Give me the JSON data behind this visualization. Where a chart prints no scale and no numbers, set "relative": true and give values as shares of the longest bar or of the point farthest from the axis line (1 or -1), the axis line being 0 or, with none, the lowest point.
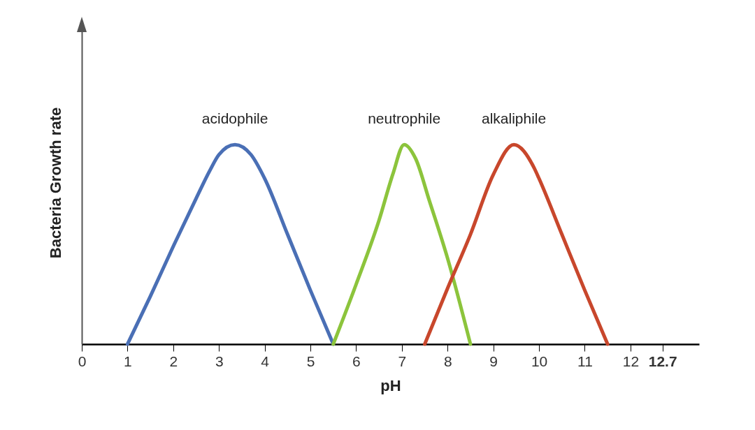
{
  "chart_data": {
    "type": "line",
    "relative": true,
    "xlabel": "pH",
    "ylabel": "Bacteria Growth rate",
    "xlim": [
      0,
      13.5
    ],
    "xticks": [
      0,
      1,
      2,
      3,
      4,
      5,
      6,
      7,
      8,
      9,
      10,
      11,
      12,
      12.7
    ],
    "grid": false,
    "legend": false,
    "marker": "none",
    "line_style": "solid",
    "series": [
      {
        "name": "acidophile",
        "color": "#4a6fb5",
        "x": [
          1,
          1.5,
          2,
          2.5,
          2.8,
          3.0,
          3.35,
          3.7,
          4,
          4.5,
          5,
          5.5
        ],
        "values": [
          0,
          0.24,
          0.49,
          0.73,
          0.87,
          0.95,
          1,
          0.95,
          0.83,
          0.55,
          0.27,
          0
        ]
      },
      {
        "name": "neutrophile",
        "color": "#8cc43c",
        "x": [
          5.5,
          6,
          6.5,
          6.8,
          7.05,
          7.3,
          7.6,
          8,
          8.5
        ],
        "values": [
          0,
          0.3,
          0.62,
          0.85,
          1,
          0.93,
          0.72,
          0.43,
          0
        ]
      },
      {
        "name": "alkaliphile",
        "color": "#c8472c",
        "x": [
          7.5,
          8,
          8.5,
          9,
          9.45,
          9.9,
          10,
          10.5,
          11,
          11.5
        ],
        "values": [
          0,
          0.28,
          0.55,
          0.85,
          1,
          0.88,
          0.83,
          0.55,
          0.27,
          0
        ]
      }
    ]
  }
}
